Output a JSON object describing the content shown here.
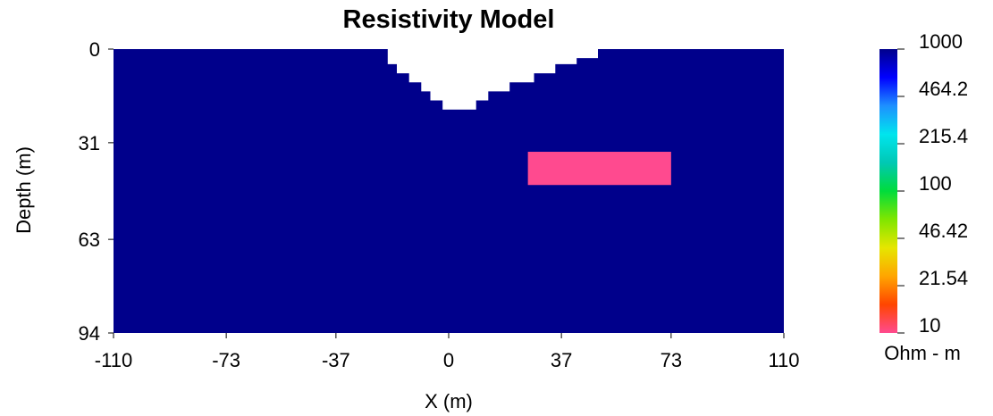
{
  "chart_data": {
    "type": "heatmap",
    "title": "Resistivity Model",
    "xlabel": "X (m)",
    "ylabel": "Depth (m)",
    "xlim": [
      -110,
      110
    ],
    "ylim": [
      0,
      94
    ],
    "y_inverted": true,
    "x_ticks": [
      "-110",
      "-73",
      "-37",
      "0",
      "37",
      "73",
      "110"
    ],
    "x_tick_values": [
      -110,
      -73,
      -37,
      0,
      37,
      73,
      110
    ],
    "y_ticks": [
      "0",
      "31",
      "63",
      "94"
    ],
    "y_tick_values": [
      0,
      31,
      63,
      94
    ],
    "background": {
      "resistivity": 1000,
      "color": "#00008B"
    },
    "air_region": {
      "color": "#FFFFFF",
      "profile": [
        [
          -20,
          0
        ],
        [
          -20,
          5
        ],
        [
          -17,
          5
        ],
        [
          -17,
          8
        ],
        [
          -13,
          8
        ],
        [
          -13,
          11
        ],
        [
          -9,
          11
        ],
        [
          -9,
          14
        ],
        [
          -6,
          14
        ],
        [
          -6,
          17
        ],
        [
          -2,
          17
        ],
        [
          -2,
          20
        ],
        [
          9,
          20
        ],
        [
          9,
          17
        ],
        [
          13,
          17
        ],
        [
          13,
          14
        ],
        [
          20,
          14
        ],
        [
          20,
          11
        ],
        [
          28,
          11
        ],
        [
          28,
          8
        ],
        [
          35,
          8
        ],
        [
          35,
          5
        ],
        [
          42,
          5
        ],
        [
          42,
          3
        ],
        [
          49,
          3
        ],
        [
          49,
          0
        ]
      ]
    },
    "anomaly": {
      "x": [
        26,
        73
      ],
      "depth": [
        34,
        45
      ],
      "resistivity": 10,
      "color": "#FF4A8F"
    },
    "colorbar": {
      "unit_label": "Ohm - m",
      "scale": "log",
      "tick_labels": [
        "1000",
        "464.2",
        "215.4",
        "100",
        "46.42",
        "21.54",
        "10"
      ],
      "tick_values": [
        1000,
        464.2,
        215.4,
        100,
        46.42,
        21.54,
        10
      ],
      "colors_top_to_bottom": [
        "#00008B",
        "#0000FF",
        "#1E90FF",
        "#00E5EE",
        "#00C8B4",
        "#00DC3C",
        "#7FE600",
        "#E6E600",
        "#FFA500",
        "#FF4500",
        "#FF4A8F"
      ]
    }
  }
}
